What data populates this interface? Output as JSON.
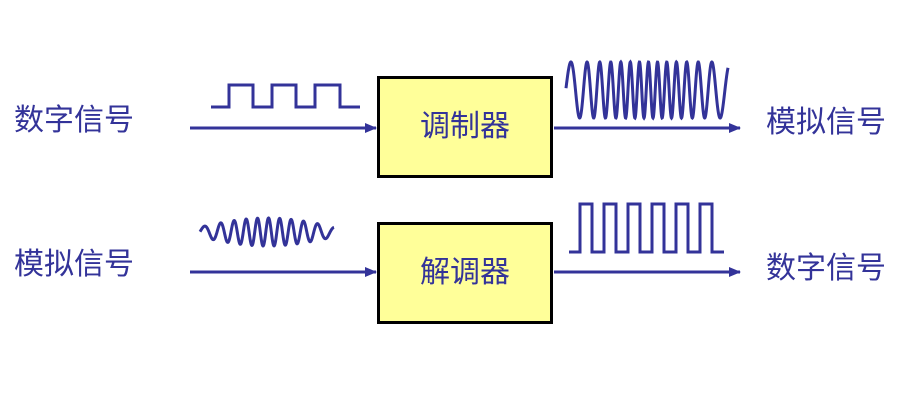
{
  "colors": {
    "signal": "#333399",
    "box_fill": "#ffff99",
    "box_border": "#000000"
  },
  "row1": {
    "input_label": "数字信号",
    "box_label": "调制器",
    "output_label": "模拟信号",
    "input_wave": "square-wave",
    "output_wave": "modulated-sine-wave"
  },
  "row2": {
    "input_label": "模拟信号",
    "box_label": "解调器",
    "output_label": "数字信号",
    "input_wave": "modulated-sine-wave",
    "output_wave": "square-wave"
  }
}
